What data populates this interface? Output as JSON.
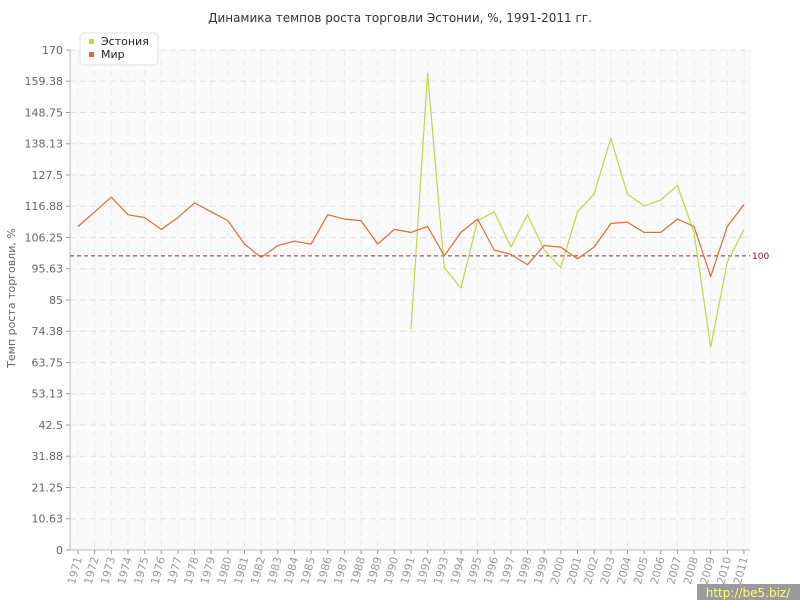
{
  "chart_data": {
    "type": "line",
    "title": "Динамика темпов роста торговли Эстонии, %, 1991-2011 гг.",
    "ylabel": "Темп роста торговли, %",
    "xlabel": "",
    "ylim": [
      0,
      170
    ],
    "yticks": [
      "0",
      "10.63",
      "21.25",
      "31.88",
      "42.5",
      "53.13",
      "63.75",
      "74.38",
      "85",
      "95.63",
      "106.25",
      "116.88",
      "127.5",
      "138.13",
      "148.75",
      "159.38",
      "170"
    ],
    "x": [
      "1971",
      "1972",
      "1973",
      "1974",
      "1975",
      "1976",
      "1977",
      "1978",
      "1979",
      "1980",
      "1981",
      "1982",
      "1983",
      "1984",
      "1985",
      "1986",
      "1987",
      "1988",
      "1989",
      "1990",
      "1991",
      "1992",
      "1993",
      "1994",
      "1995",
      "1996",
      "1997",
      "1998",
      "1999",
      "2000",
      "2001",
      "2002",
      "2003",
      "2004",
      "2005",
      "2006",
      "2007",
      "2008",
      "2009",
      "2010",
      "2011"
    ],
    "series": [
      {
        "name": "Эстония",
        "color": "#bcd94a",
        "values": [
          null,
          null,
          null,
          null,
          null,
          null,
          null,
          null,
          null,
          null,
          null,
          null,
          null,
          null,
          null,
          null,
          null,
          null,
          null,
          null,
          75,
          162,
          96,
          89,
          112,
          115,
          103,
          114,
          102,
          96,
          115,
          121,
          140,
          121,
          117,
          119,
          124,
          108,
          69,
          98,
          109
        ]
      },
      {
        "name": "Мир",
        "color": "#e06b3a",
        "values": [
          110,
          115,
          120,
          114,
          113,
          109,
          113,
          118,
          115,
          112,
          104,
          99.5,
          103.5,
          105,
          104,
          114,
          112.5,
          112,
          104,
          109,
          108,
          110,
          100,
          108,
          112.5,
          102,
          100.5,
          97,
          103.5,
          103,
          99,
          103,
          111,
          111.5,
          108,
          108,
          112.5,
          110,
          93,
          110,
          117.5
        ]
      }
    ],
    "reference_line": {
      "value": 100,
      "label": "100",
      "color": "#9b2a2a"
    },
    "grid": true,
    "legend": "top-left"
  },
  "watermark": "http://be5.biz/"
}
